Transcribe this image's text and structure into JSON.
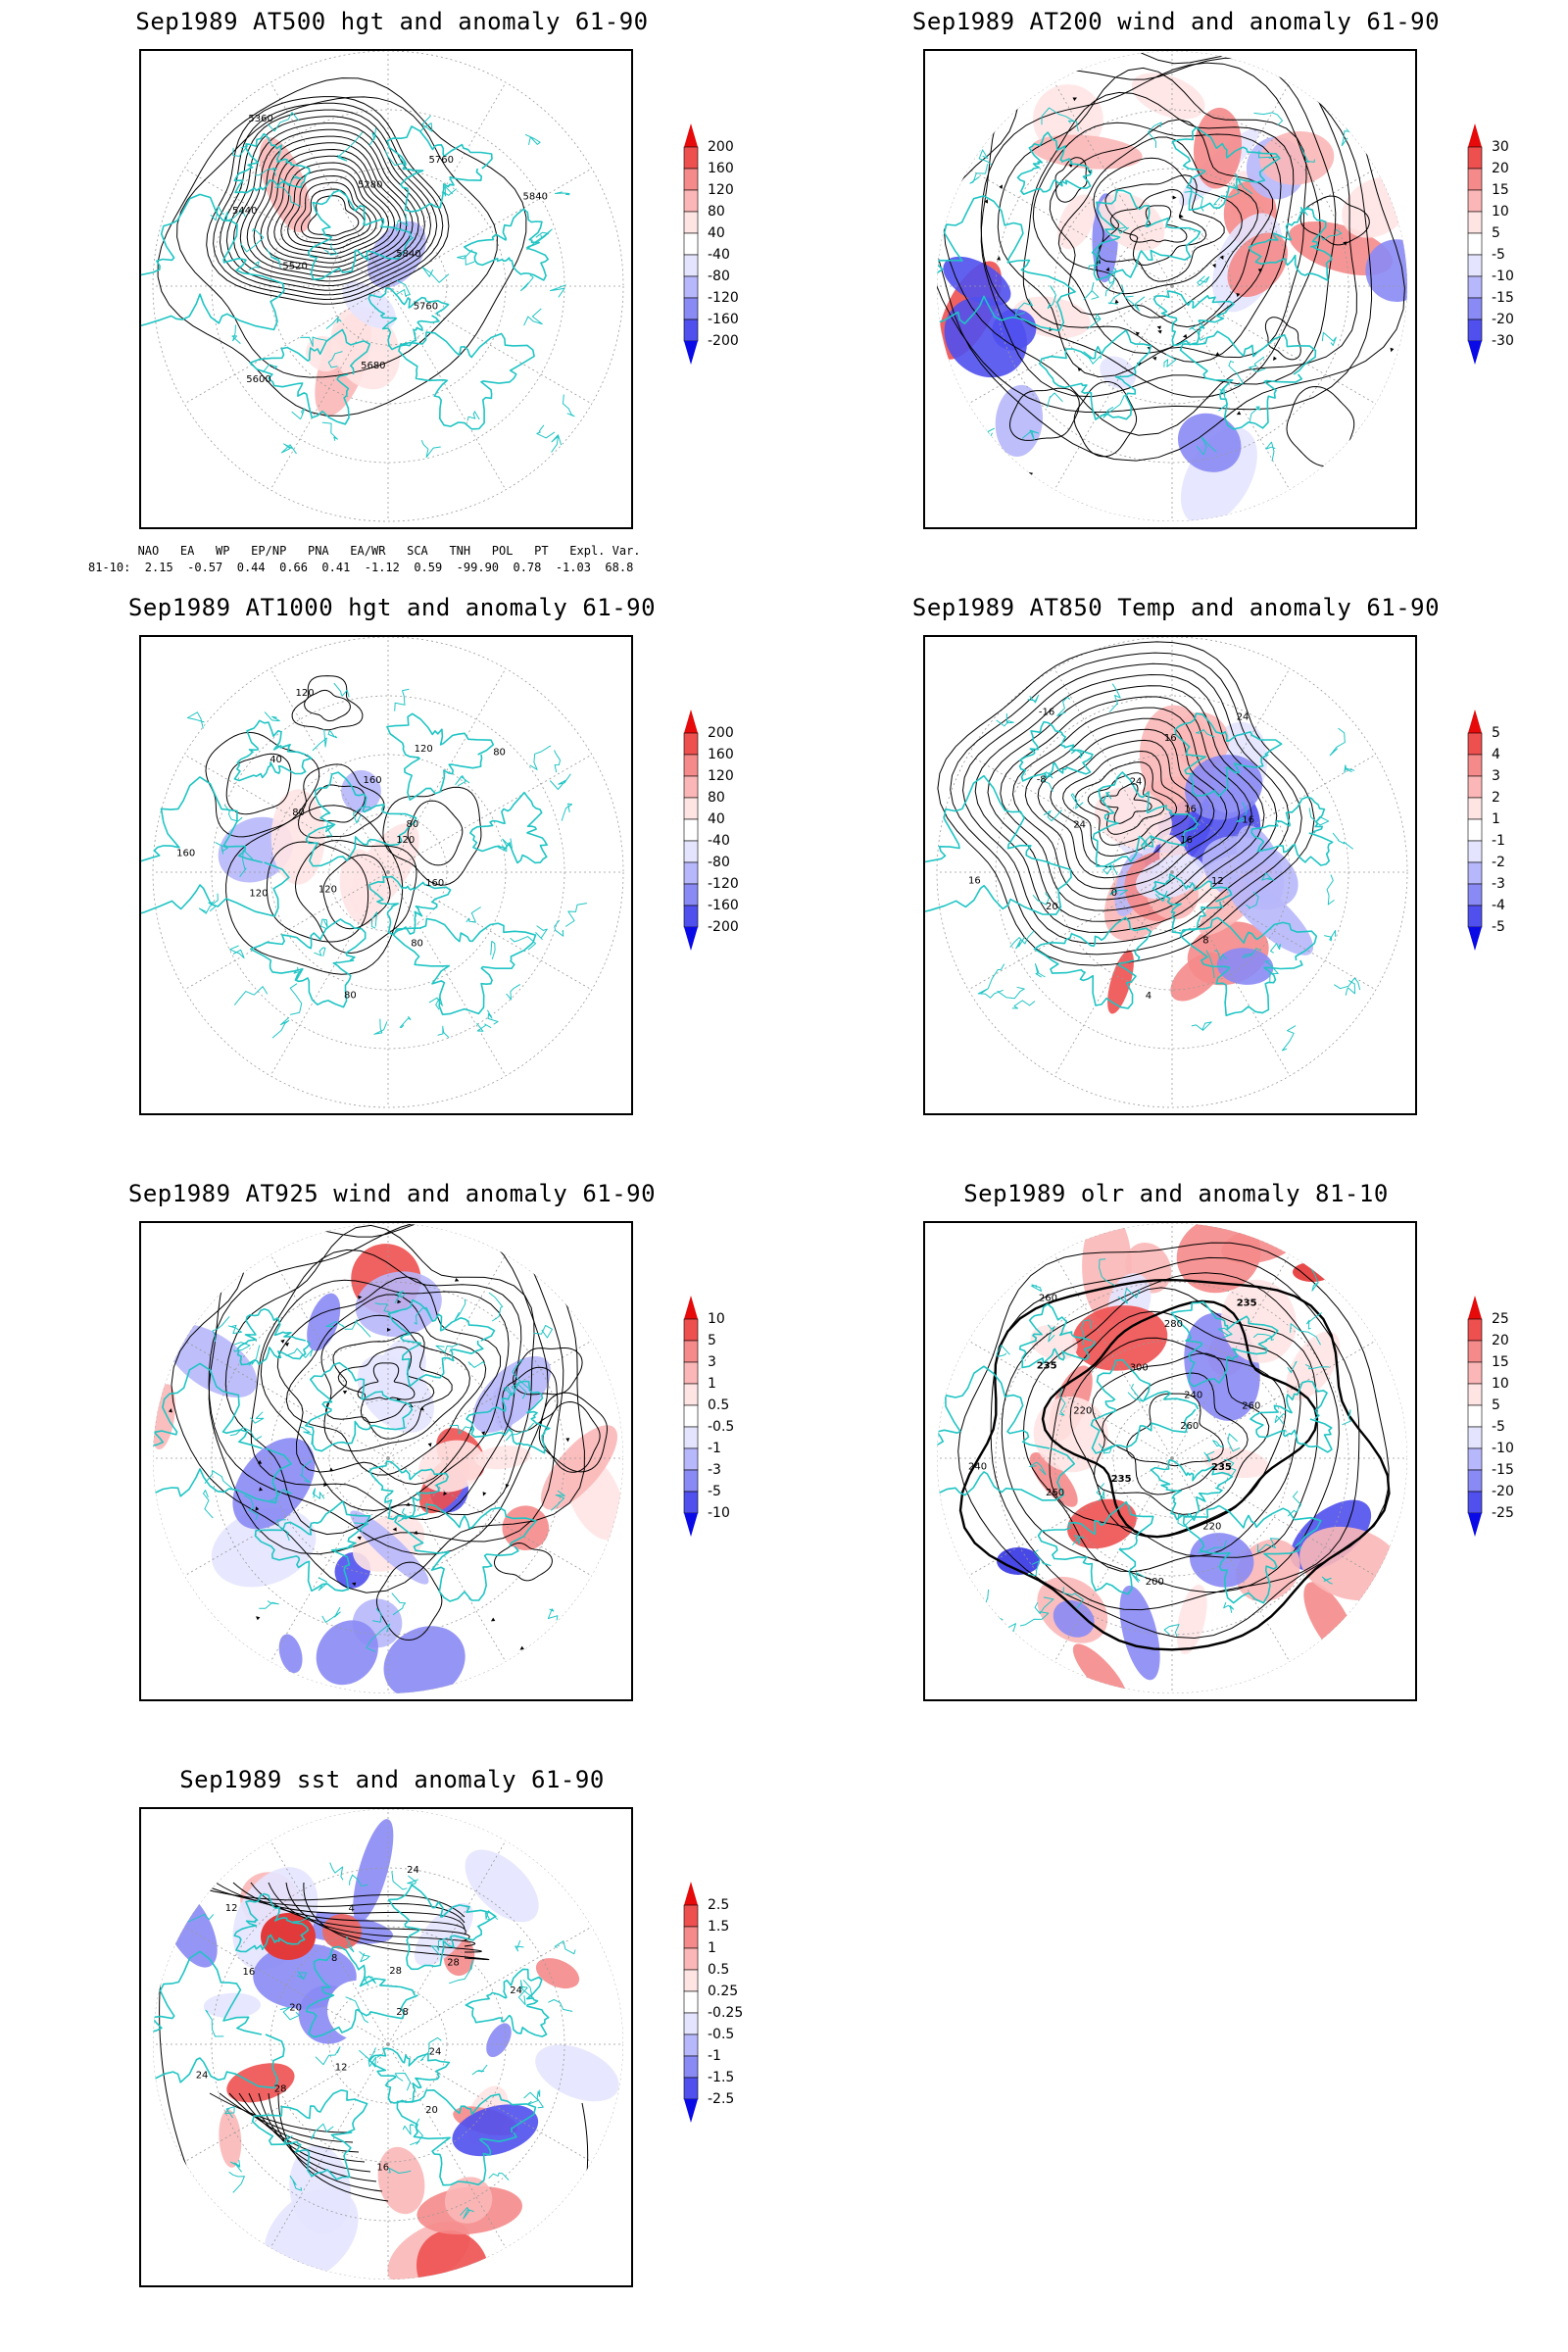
{
  "panels": [
    {
      "id": "p1",
      "title": "Sep1989 AT500 hgt and anomaly 61-90",
      "colorbar": [
        "200",
        "160",
        "120",
        "80",
        "40",
        "-40",
        "-80",
        "-120",
        "-160",
        "-200"
      ],
      "contour_labels": [
        "5840",
        "5760",
        "5680",
        "5600",
        "5520",
        "5440",
        "5360",
        "5280",
        "5760",
        "5840"
      ]
    },
    {
      "id": "p2",
      "title": "Sep1989 AT200 wind and anomaly 61-90",
      "colorbar": [
        "30",
        "20",
        "15",
        "10",
        "5",
        "-5",
        "-10",
        "-15",
        "-20",
        "-30"
      ],
      "contour_labels": []
    },
    {
      "id": "p3",
      "title": "Sep1989 AT1000 hgt and anomaly 61-90",
      "colorbar": [
        "200",
        "160",
        "120",
        "80",
        "40",
        "-40",
        "-80",
        "-120",
        "-160",
        "-200"
      ],
      "contour_labels": [
        "120",
        "160",
        "80",
        "80",
        "120",
        "120",
        "160",
        "80",
        "40",
        "120",
        "160",
        "120",
        "80",
        "80"
      ]
    },
    {
      "id": "p4",
      "title": "Sep1989 AT850 Temp and anomaly 61-90",
      "colorbar": [
        "5",
        "4",
        "3",
        "2",
        "1",
        "-1",
        "-2",
        "-3",
        "-4",
        "-5"
      ],
      "contour_labels": [
        "16",
        "12",
        "8",
        "4",
        "0",
        "20",
        "16",
        "24",
        "-8",
        "-16",
        "24",
        "16",
        "24",
        "16",
        "16"
      ]
    },
    {
      "id": "p5",
      "title": "Sep1989 AT925 wind and anomaly 61-90",
      "colorbar": [
        "10",
        "5",
        "3",
        "1",
        "0.5",
        "-0.5",
        "-1",
        "-3",
        "-5",
        "-10"
      ],
      "contour_labels": []
    },
    {
      "id": "p6",
      "title": "Sep1989 olr and anomaly 81-10",
      "colorbar": [
        "25",
        "20",
        "15",
        "10",
        "5",
        "-5",
        "-10",
        "-15",
        "-20",
        "-25"
      ],
      "contour_labels": [
        "260",
        "235",
        "220",
        "200",
        "235",
        "260",
        "240",
        "220",
        "235",
        "260",
        "300",
        "280",
        "235",
        "240",
        "260"
      ]
    },
    {
      "id": "p7",
      "title": "Sep1989 sst and anomaly 61-90",
      "colorbar": [
        "2.5",
        "1.5",
        "1",
        "0.5",
        "0.25",
        "-0.25",
        "-0.5",
        "-1",
        "-1.5",
        "-2.5"
      ],
      "contour_labels": [
        "28",
        "24",
        "20",
        "16",
        "12",
        "28",
        "24",
        "20",
        "16",
        "12",
        "8",
        "4",
        "24",
        "28",
        "28",
        "24"
      ]
    }
  ],
  "indices": {
    "header": [
      "NAO",
      "EA",
      "WP",
      "EP/NP",
      "PNA",
      "EA/WR",
      "SCA",
      "TNH",
      "POL",
      "PT",
      "Expl. Var."
    ],
    "row_label": "81-10:",
    "values": [
      "2.15",
      "-0.57",
      "0.44",
      "0.66",
      "0.41",
      "-1.12",
      "0.59",
      "-99.90",
      "0.78",
      "-1.03",
      "68.8"
    ]
  },
  "colors": {
    "coast": "#20c4c4",
    "contour": "#000000",
    "grid": "#9a9a9a",
    "pos": [
      "#ffe4e4",
      "#fbb7b7",
      "#f58a8a",
      "#ee5050",
      "#e60a0a"
    ],
    "neg": [
      "#e4e4ff",
      "#b7b7fb",
      "#8a8af5",
      "#5050ee",
      "#0a0ae6"
    ]
  }
}
